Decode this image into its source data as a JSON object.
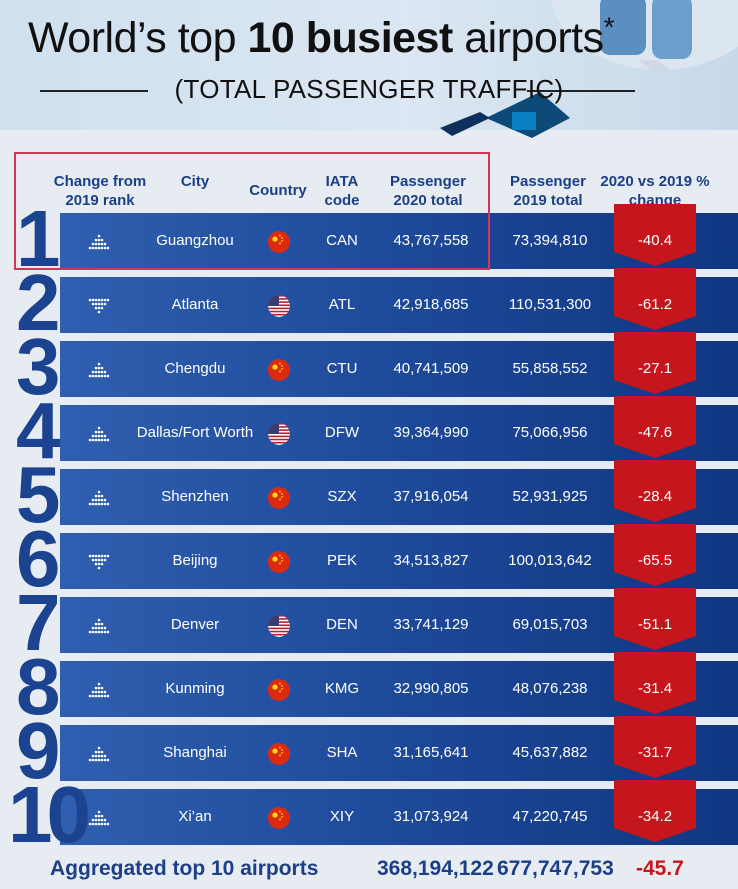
{
  "title": {
    "prefix": "World’s top",
    "emphasis": "10 busiest",
    "suffix": "airports",
    "mark": "*",
    "subtitle": "(TOTAL PASSENGER TRAFFIC)"
  },
  "columns": {
    "change": "Change from 2019 rank",
    "city": "City",
    "country": "Country",
    "iata": "IATA code",
    "pax2020": "Passenger 2020 total",
    "pax2019": "Passenger 2019 total",
    "pct": "2020 vs 2019 % change"
  },
  "colors": {
    "brand_blue": "#1c3f86",
    "row_blue": "#1f4b9c",
    "decline_red": "#c4161c",
    "highlight_box": "#d6325a"
  },
  "chart_data": {
    "type": "table",
    "title": "World’s top 10 busiest airports* (TOTAL PASSENGER TRAFFIC)",
    "rows": [
      {
        "rank": "1",
        "change": "up",
        "city": "Guangzhou",
        "country": "China",
        "flag": "cn",
        "iata": "CAN",
        "pax2020": "43,767,558",
        "pax2019": "73,394,810",
        "pct": "-40.4"
      },
      {
        "rank": "2",
        "change": "down",
        "city": "Atlanta",
        "country": "United States",
        "flag": "us",
        "iata": "ATL",
        "pax2020": "42,918,685",
        "pax2019": "110,531,300",
        "pct": "-61.2"
      },
      {
        "rank": "3",
        "change": "up",
        "city": "Chengdu",
        "country": "China",
        "flag": "cn",
        "iata": "CTU",
        "pax2020": "40,741,509",
        "pax2019": "55,858,552",
        "pct": "-27.1"
      },
      {
        "rank": "4",
        "change": "up",
        "city": "Dallas/Fort Worth",
        "country": "United States",
        "flag": "us",
        "iata": "DFW",
        "pax2020": "39,364,990",
        "pax2019": "75,066,956",
        "pct": "-47.6"
      },
      {
        "rank": "5",
        "change": "up",
        "city": "Shenzhen",
        "country": "China",
        "flag": "cn",
        "iata": "SZX",
        "pax2020": "37,916,054",
        "pax2019": "52,931,925",
        "pct": "-28.4"
      },
      {
        "rank": "6",
        "change": "down",
        "city": "Beijing",
        "country": "China",
        "flag": "cn",
        "iata": "PEK",
        "pax2020": "34,513,827",
        "pax2019": "100,013,642",
        "pct": "-65.5"
      },
      {
        "rank": "7",
        "change": "up",
        "city": "Denver",
        "country": "United States",
        "flag": "us",
        "iata": "DEN",
        "pax2020": "33,741,129",
        "pax2019": "69,015,703",
        "pct": "-51.1"
      },
      {
        "rank": "8",
        "change": "up",
        "city": "Kunming",
        "country": "China",
        "flag": "cn",
        "iata": "KMG",
        "pax2020": "32,990,805",
        "pax2019": "48,076,238",
        "pct": "-31.4"
      },
      {
        "rank": "9",
        "change": "up",
        "city": "Shanghai",
        "country": "China",
        "flag": "cn",
        "iata": "SHA",
        "pax2020": "31,165,641",
        "pax2019": "45,637,882",
        "pct": "-31.7"
      },
      {
        "rank": "10",
        "change": "up",
        "city": "Xi’an",
        "country": "China",
        "flag": "cn",
        "iata": "XIY",
        "pax2020": "31,073,924",
        "pax2019": "47,220,745",
        "pct": "-34.2"
      }
    ]
  },
  "aggregate": {
    "label": "Aggregated top 10 airports",
    "pax2020": "368,194,122",
    "pax2019": "677,747,753",
    "pct": "-45.7"
  }
}
